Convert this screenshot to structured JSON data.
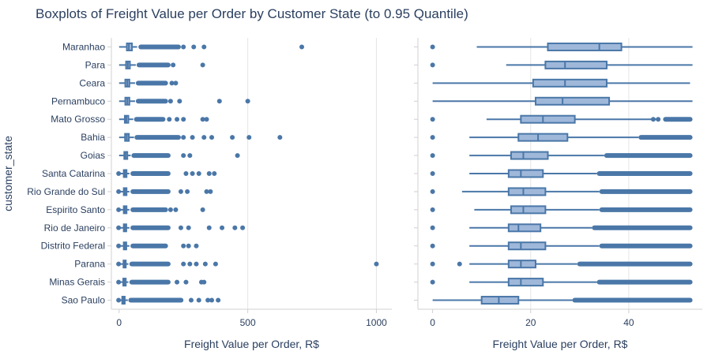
{
  "title": "Boxplots of Freight Value per Order by Customer State (to 0.95 Quantile)",
  "colors": {
    "box_fill": "#9fb8da",
    "box_line": "#4a77a8",
    "point": "#4a77a8",
    "grid": "#e5e5e5",
    "axis": "#d0d0d0"
  },
  "chart_data": [
    {
      "type": "box",
      "orientation": "horizontal",
      "ylabel": "customer_state",
      "xlabel": "Freight Value per Order, R$",
      "xlim": [
        -30,
        1060
      ],
      "xticks": [
        0,
        500,
        1000
      ],
      "grid": true,
      "categories": [
        "Maranhao",
        "Para",
        "Ceara",
        "Pernambuco",
        "Mato Grosso",
        "Bahia",
        "Goias",
        "Santa Catarina",
        "Rio Grande do Sul",
        "Espirito Santo",
        "Rio de Janeiro",
        "Distrito Federal",
        "Parana",
        "Minas Gerais",
        "Sao Paulo"
      ],
      "boxes": [
        {
          "min": 0,
          "q1": 30,
          "median": 38,
          "q3": 50,
          "max": 70
        },
        {
          "min": 0,
          "q1": 27,
          "median": 34,
          "q3": 42,
          "max": 65
        },
        {
          "min": 0,
          "q1": 24,
          "median": 32,
          "q3": 40,
          "max": 62
        },
        {
          "min": 0,
          "q1": 24,
          "median": 32,
          "q3": 40,
          "max": 62
        },
        {
          "min": 0,
          "q1": 22,
          "median": 28,
          "q3": 36,
          "max": 55
        },
        {
          "min": 0,
          "q1": 23,
          "median": 30,
          "q3": 38,
          "max": 58
        },
        {
          "min": 0,
          "q1": 20,
          "median": 25,
          "q3": 32,
          "max": 45
        },
        {
          "min": 0,
          "q1": 18,
          "median": 23,
          "q3": 29,
          "max": 40
        },
        {
          "min": 0,
          "q1": 18,
          "median": 23,
          "q3": 29,
          "max": 40
        },
        {
          "min": 0,
          "q1": 18,
          "median": 23,
          "q3": 29,
          "max": 40
        },
        {
          "min": 0,
          "q1": 18,
          "median": 22,
          "q3": 28,
          "max": 40
        },
        {
          "min": 0,
          "q1": 18,
          "median": 22,
          "q3": 28,
          "max": 40
        },
        {
          "min": 0,
          "q1": 17,
          "median": 21,
          "q3": 26,
          "max": 36
        },
        {
          "min": 0,
          "q1": 16,
          "median": 20,
          "q3": 26,
          "max": 36
        },
        {
          "min": 0,
          "q1": 12,
          "median": 17,
          "q3": 22,
          "max": 34
        }
      ],
      "outliers": [
        {
          "dense": [
            75,
            240
          ],
          "extra": [
            250,
            290,
            330,
            710
          ]
        },
        {
          "dense": [
            68,
            200
          ],
          "extra": [
            210,
            325
          ]
        },
        {
          "dense": [
            65,
            190
          ],
          "extra": [
            205,
            220
          ]
        },
        {
          "dense": [
            65,
            190
          ],
          "extra": [
            200,
            235,
            390,
            500
          ]
        },
        {
          "dense": [
            58,
            180
          ],
          "extra": [
            195,
            225,
            250,
            325,
            340
          ]
        },
        {
          "dense": [
            60,
            240
          ],
          "extra": [
            250,
            285,
            330,
            360,
            440,
            505,
            625
          ]
        },
        {
          "dense": [
            48,
            200
          ],
          "extra": [
            250,
            275,
            460
          ]
        },
        {
          "dense": [
            44,
            200
          ],
          "extra": [
            -2,
            260,
            285,
            310,
            350,
            370
          ]
        },
        {
          "dense": [
            44,
            200
          ],
          "extra": [
            -2,
            240,
            265,
            340,
            355
          ]
        },
        {
          "dense": [
            44,
            190
          ],
          "extra": [
            -2,
            200,
            220,
            325
          ]
        },
        {
          "dense": [
            44,
            200
          ],
          "extra": [
            -2,
            240,
            270,
            350,
            400,
            450,
            480
          ]
        },
        {
          "dense": [
            44,
            190
          ],
          "extra": [
            -2,
            250,
            270,
            300
          ]
        },
        {
          "dense": [
            40,
            200
          ],
          "extra": [
            -2,
            250,
            275,
            300,
            335,
            375,
            1000
          ]
        },
        {
          "dense": [
            40,
            200
          ],
          "extra": [
            -2,
            225,
            260,
            320,
            330
          ]
        },
        {
          "dense": [
            36,
            250
          ],
          "extra": [
            -2,
            280,
            310,
            345,
            360,
            385
          ]
        }
      ]
    },
    {
      "type": "box",
      "orientation": "horizontal",
      "xlabel": "Freight Value per Order, R$",
      "xlim": [
        -3,
        55
      ],
      "xticks": [
        0,
        20,
        40
      ],
      "grid": true,
      "categories": [
        "Maranhao",
        "Para",
        "Ceara",
        "Pernambuco",
        "Mato Grosso",
        "Bahia",
        "Goias",
        "Santa Catarina",
        "Rio Grande do Sul",
        "Espirito Santo",
        "Rio de Janeiro",
        "Distrito Federal",
        "Parana",
        "Minas Gerais",
        "Sao Paulo"
      ],
      "boxes": [
        {
          "min": 9,
          "q1": 23.5,
          "median": 34,
          "q3": 38.5,
          "max": 53
        },
        {
          "min": 15,
          "q1": 23,
          "median": 27,
          "q3": 35.5,
          "max": 53
        },
        {
          "min": 0,
          "q1": 20.5,
          "median": 27,
          "q3": 35.5,
          "max": 52.5
        },
        {
          "min": 0,
          "q1": 21,
          "median": 26.5,
          "q3": 36,
          "max": 53
        },
        {
          "min": 11,
          "q1": 18,
          "median": 22.5,
          "q3": 29,
          "max": 46
        },
        {
          "min": 7.5,
          "q1": 17.5,
          "median": 21.5,
          "q3": 27.5,
          "max": 42
        },
        {
          "min": 7.5,
          "q1": 16,
          "median": 18.5,
          "q3": 23.5,
          "max": 35
        },
        {
          "min": 7.5,
          "q1": 15.5,
          "median": 18,
          "q3": 22.5,
          "max": 33.5
        },
        {
          "min": 6,
          "q1": 15.5,
          "median": 18.5,
          "q3": 23,
          "max": 34
        },
        {
          "min": 8.5,
          "q1": 16,
          "median": 18.5,
          "q3": 23,
          "max": 34
        },
        {
          "min": 7.5,
          "q1": 15.5,
          "median": 17.5,
          "q3": 22,
          "max": 32.5
        },
        {
          "min": 7.5,
          "q1": 15.5,
          "median": 18,
          "q3": 23,
          "max": 34
        },
        {
          "min": 7.5,
          "q1": 15.5,
          "median": 18,
          "q3": 21,
          "max": 29.5
        },
        {
          "min": 7.5,
          "q1": 15.5,
          "median": 18,
          "q3": 22.5,
          "max": 33.5
        },
        {
          "min": 0,
          "q1": 10,
          "median": 13.5,
          "q3": 17.5,
          "max": 28.5
        }
      ],
      "outliers": [
        {
          "dense": null,
          "extra": [
            0
          ]
        },
        {
          "dense": null,
          "extra": [
            0
          ]
        },
        {
          "dense": null,
          "extra": []
        },
        {
          "dense": null,
          "extra": []
        },
        {
          "dense": [
            47,
            53
          ],
          "extra": [
            0,
            45,
            46
          ]
        },
        {
          "dense": [
            42,
            53
          ],
          "extra": [
            0
          ]
        },
        {
          "dense": [
            35,
            53
          ],
          "extra": [
            0
          ]
        },
        {
          "dense": [
            33.5,
            53
          ],
          "extra": [
            0
          ]
        },
        {
          "dense": [
            34,
            53
          ],
          "extra": [
            0
          ]
        },
        {
          "dense": [
            34,
            53
          ],
          "extra": [
            0
          ]
        },
        {
          "dense": [
            32.5,
            53
          ],
          "extra": [
            0
          ]
        },
        {
          "dense": [
            34,
            53
          ],
          "extra": [
            0
          ]
        },
        {
          "dense": [
            29.5,
            53
          ],
          "extra": [
            0,
            5.5
          ]
        },
        {
          "dense": [
            33.5,
            53
          ],
          "extra": [
            0
          ]
        },
        {
          "dense": [
            28.5,
            53
          ],
          "extra": []
        }
      ]
    }
  ]
}
